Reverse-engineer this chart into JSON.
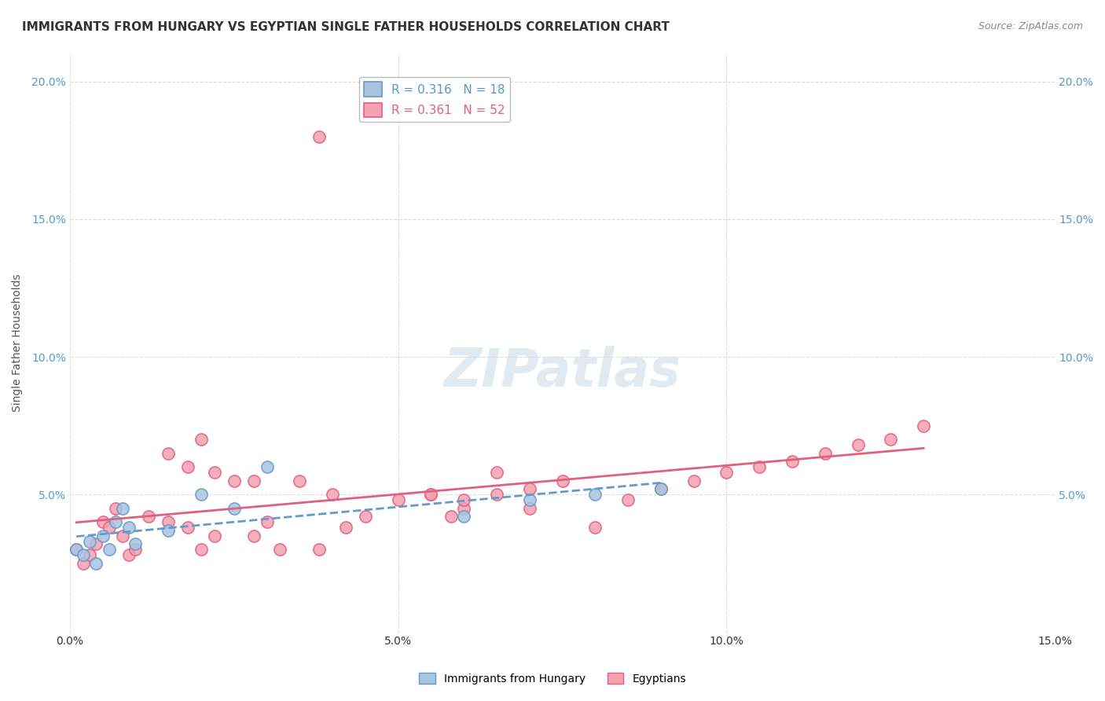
{
  "title": "IMMIGRANTS FROM HUNGARY VS EGYPTIAN SINGLE FATHER HOUSEHOLDS CORRELATION CHART",
  "source": "Source: ZipAtlas.com",
  "ylabel": "Single Father Households",
  "xlabel": "",
  "xlim": [
    0.0,
    0.15
  ],
  "ylim": [
    0.0,
    0.21
  ],
  "xticks": [
    0.0,
    0.05,
    0.1,
    0.15
  ],
  "xtick_labels": [
    "0.0%",
    "5.0%",
    "10.0%",
    "15.0%"
  ],
  "yticks": [
    0.0,
    0.05,
    0.1,
    0.15,
    0.2
  ],
  "ytick_labels": [
    "",
    "5.0%",
    "10.0%",
    "15.0%",
    "20.0%"
  ],
  "legend_r1": "R = 0.316   N = 18",
  "legend_r2": "R = 0.361   N = 52",
  "watermark": "ZIPatlas",
  "hungary_color": "#a8c4e0",
  "egypt_color": "#f4a0b0",
  "hungary_line_color": "#6699cc",
  "egypt_line_color": "#e06080",
  "hungary_scatter_x": [
    0.001,
    0.002,
    0.003,
    0.004,
    0.005,
    0.006,
    0.007,
    0.008,
    0.009,
    0.01,
    0.015,
    0.02,
    0.025,
    0.03,
    0.06,
    0.07,
    0.08,
    0.09
  ],
  "hungary_scatter_y": [
    0.03,
    0.028,
    0.033,
    0.025,
    0.035,
    0.03,
    0.04,
    0.045,
    0.038,
    0.032,
    0.037,
    0.05,
    0.045,
    0.06,
    0.042,
    0.048,
    0.05,
    0.052
  ],
  "egypt_scatter_x": [
    0.001,
    0.002,
    0.003,
    0.004,
    0.005,
    0.006,
    0.007,
    0.008,
    0.009,
    0.01,
    0.012,
    0.015,
    0.018,
    0.02,
    0.022,
    0.025,
    0.028,
    0.03,
    0.032,
    0.035,
    0.038,
    0.04,
    0.042,
    0.045,
    0.05,
    0.055,
    0.06,
    0.065,
    0.07,
    0.08,
    0.085,
    0.09,
    0.095,
    0.1,
    0.105,
    0.11,
    0.115,
    0.12,
    0.125,
    0.13,
    0.038,
    0.02,
    0.015,
    0.018,
    0.022,
    0.028,
    0.055,
    0.06,
    0.07,
    0.075,
    0.058,
    0.065
  ],
  "egypt_scatter_y": [
    0.03,
    0.025,
    0.028,
    0.032,
    0.04,
    0.038,
    0.045,
    0.035,
    0.028,
    0.03,
    0.042,
    0.04,
    0.038,
    0.03,
    0.035,
    0.055,
    0.035,
    0.04,
    0.03,
    0.055,
    0.03,
    0.05,
    0.038,
    0.042,
    0.048,
    0.05,
    0.045,
    0.05,
    0.045,
    0.038,
    0.048,
    0.052,
    0.055,
    0.058,
    0.06,
    0.062,
    0.065,
    0.068,
    0.07,
    0.075,
    0.18,
    0.07,
    0.065,
    0.06,
    0.058,
    0.055,
    0.05,
    0.048,
    0.052,
    0.055,
    0.042,
    0.058
  ],
  "background_color": "#ffffff",
  "grid_color": "#dddddd",
  "title_fontsize": 11,
  "axis_fontsize": 10,
  "tick_fontsize": 10,
  "legend_fontsize": 11,
  "watermark_color": "#d0dde8",
  "watermark_fontsize": 48
}
